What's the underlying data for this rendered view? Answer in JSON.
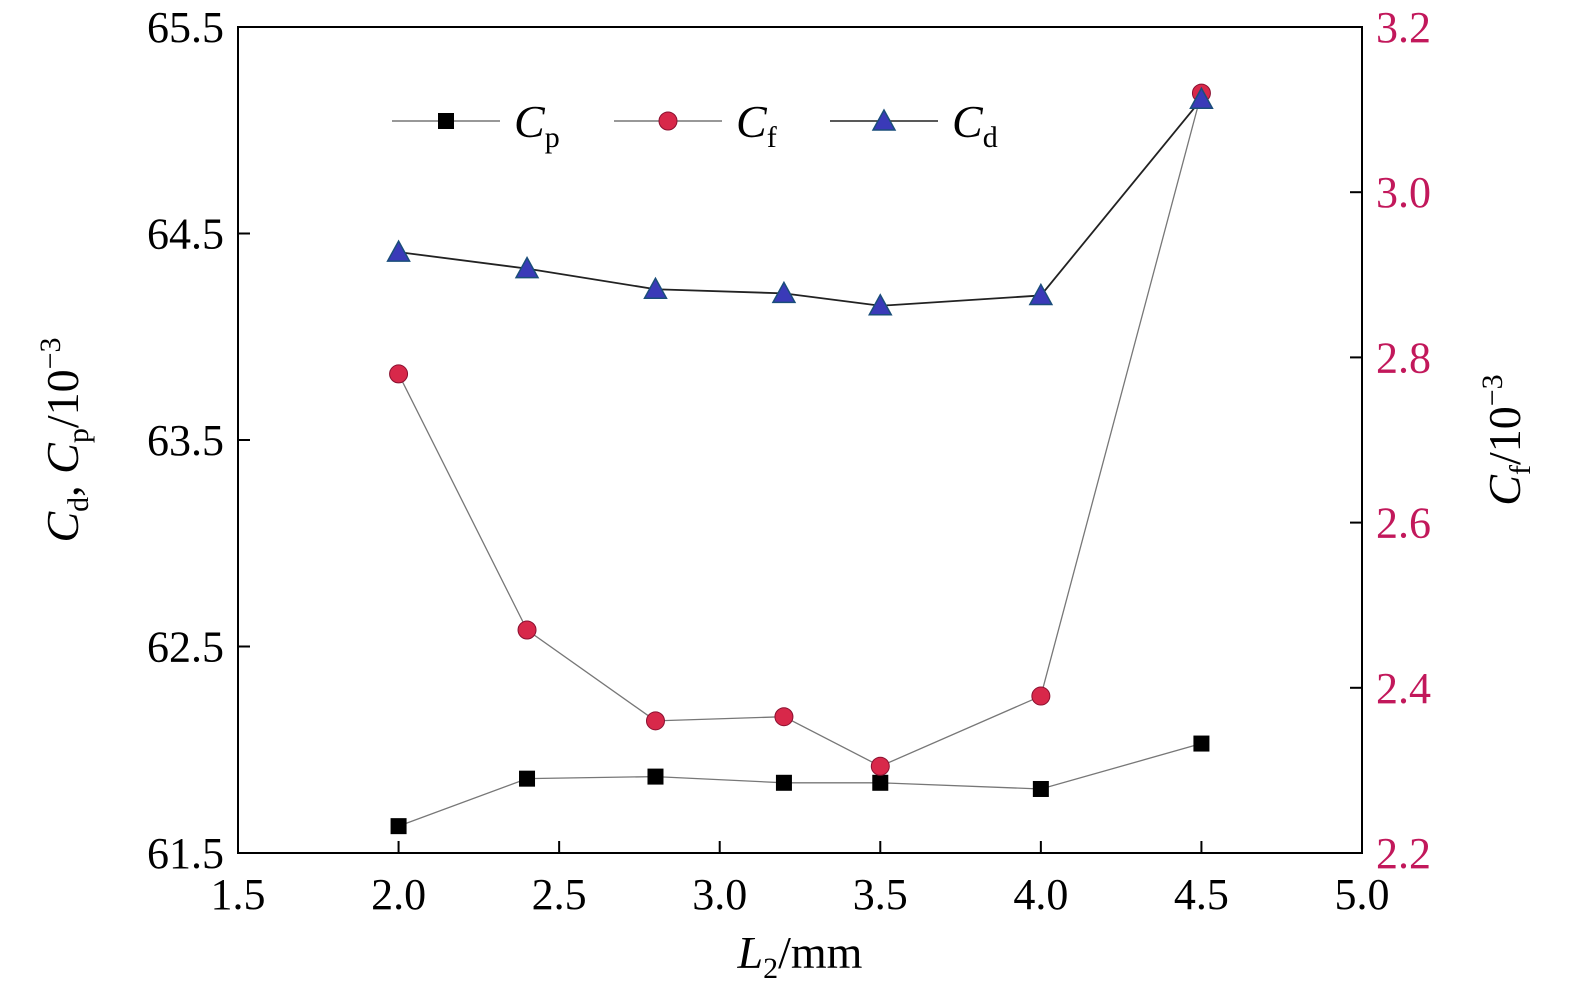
{
  "chart_data": {
    "type": "line",
    "x": [
      2.0,
      2.4,
      2.8,
      3.2,
      3.5,
      4.0,
      4.5
    ],
    "xlim": [
      1.5,
      5.0
    ],
    "x_ticks": [
      "1.5",
      "2.0",
      "2.5",
      "3.0",
      "3.5",
      "4.0",
      "4.5",
      "5.0"
    ],
    "xlabel": {
      "main": "L",
      "sub": "2",
      "rest": "/mm"
    },
    "left_axis": {
      "ylim": [
        61.5,
        65.5
      ],
      "ticks": [
        "61.5",
        "62.5",
        "63.5",
        "64.5",
        "65.5"
      ],
      "label": {
        "a": "C",
        "a_sub": "d",
        "sep": ", ",
        "b": "C",
        "b_sub": "p",
        "rest": "/10",
        "exp": "−3"
      }
    },
    "right_axis": {
      "ylim": [
        2.2,
        3.2
      ],
      "ticks": [
        "2.2",
        "2.4",
        "2.6",
        "2.8",
        "3.0",
        "3.2"
      ],
      "label": {
        "a": "C",
        "a_sub": "f",
        "rest": "/10",
        "exp": "−3"
      },
      "color": "#c2185b"
    },
    "grid": false,
    "legend_position": "top",
    "series": [
      {
        "name": "C",
        "name_sub": "p",
        "axis": "left",
        "marker": "square",
        "color": "#000000",
        "line_color": "#777777",
        "values": [
          61.63,
          61.86,
          61.87,
          61.84,
          61.84,
          61.81,
          62.03
        ]
      },
      {
        "name": "C",
        "name_sub": "f",
        "axis": "right",
        "marker": "circle",
        "color": "#d8284a",
        "line_color": "#777777",
        "values": [
          2.78,
          2.47,
          2.36,
          2.365,
          2.305,
          2.39,
          3.12
        ]
      },
      {
        "name": "C",
        "name_sub": "d",
        "axis": "left",
        "marker": "triangle",
        "color": "#3a3ab8",
        "line_color": "#222222",
        "values": [
          64.41,
          64.33,
          64.23,
          64.21,
          64.15,
          64.2,
          65.15
        ]
      }
    ]
  }
}
